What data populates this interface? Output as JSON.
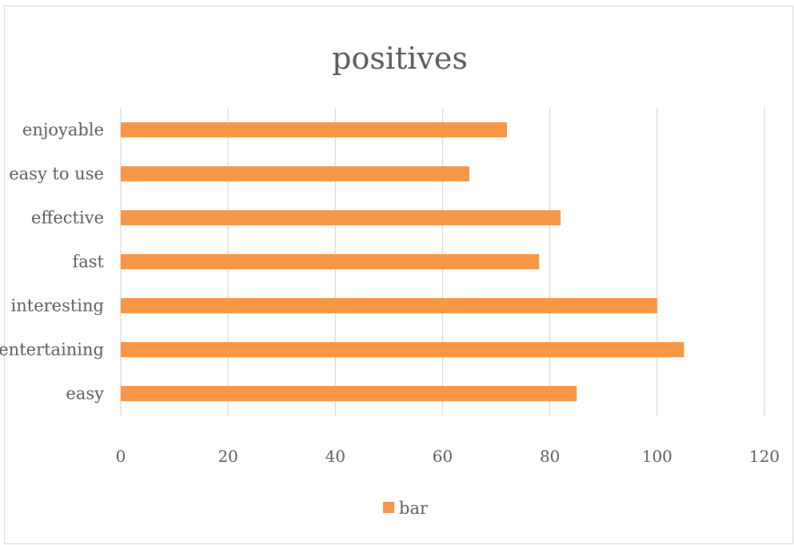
{
  "chart_data": {
    "type": "bar",
    "orientation": "horizontal",
    "title": "positives",
    "xlabel": "",
    "ylabel": "",
    "categories": [
      "enjoyable",
      "easy to use",
      "effective",
      "fast",
      "interesting",
      "entertaining",
      "easy"
    ],
    "series": [
      {
        "name": "bar",
        "values": [
          72,
          65,
          82,
          78,
          100,
          105,
          85
        ],
        "color": "#f79646"
      }
    ],
    "xlim": [
      0,
      120
    ],
    "xticks": [
      "0",
      "20",
      "40",
      "60",
      "80",
      "100",
      "120"
    ],
    "grid": true,
    "legend": "bottom"
  }
}
